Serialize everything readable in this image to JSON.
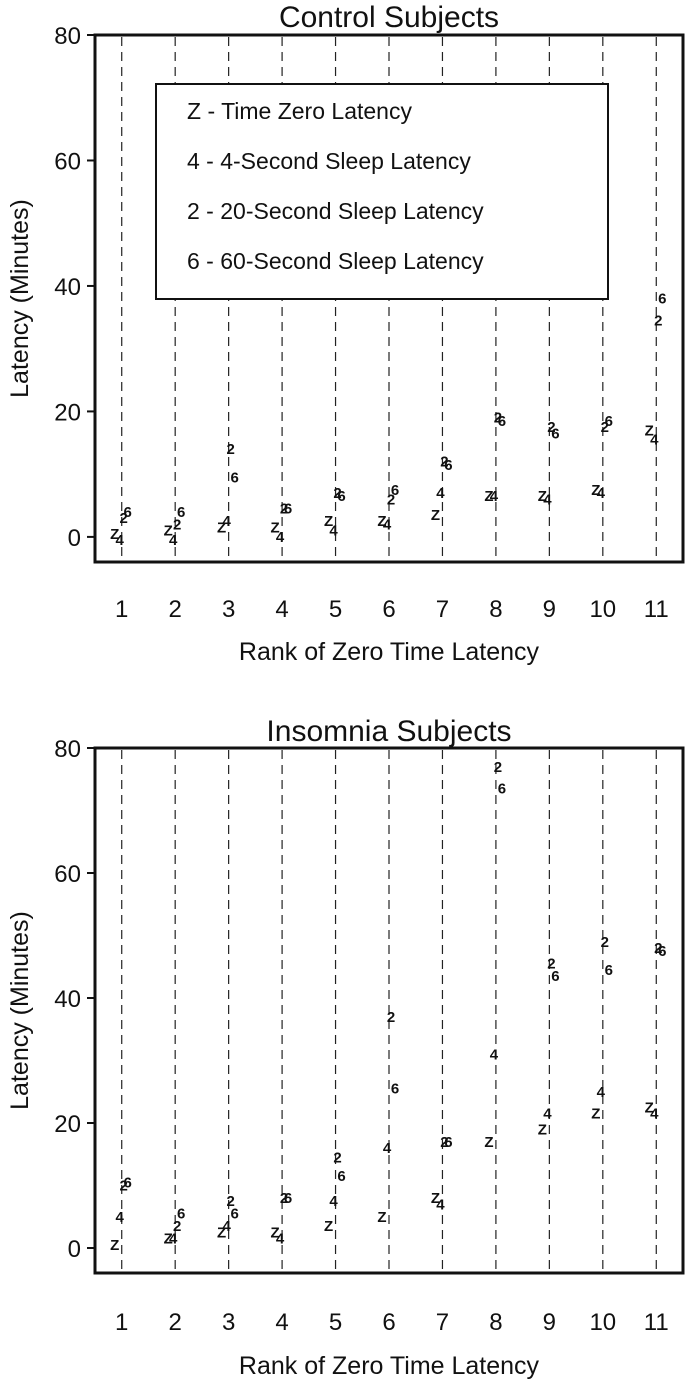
{
  "legend": [
    "Z - Time Zero Latency",
    "4 - 4-Second Sleep Latency",
    "2 - 20-Second Sleep Latency",
    "6 - 60-Second Sleep Latency"
  ],
  "chart_data": [
    {
      "type": "scatter",
      "title": "Control Subjects",
      "xlabel": "Rank of Zero Time Latency",
      "ylabel": "Latency (Minutes)",
      "xlim": [
        0.5,
        11.5
      ],
      "ylim": [
        -4,
        80
      ],
      "yticks": [
        0,
        20,
        40,
        60,
        80
      ],
      "x": [
        1,
        2,
        3,
        4,
        5,
        6,
        7,
        8,
        9,
        10,
        11
      ],
      "legend_placement": "top-center",
      "grid": "dashed vertical lines at each rank",
      "series": [
        {
          "marker": "Z",
          "values": [
            0.5,
            1,
            1.5,
            1.5,
            2.5,
            2.5,
            3.5,
            6.5,
            6.5,
            7.5,
            17
          ]
        },
        {
          "marker": "4",
          "values": [
            -0.5,
            -0.5,
            2.5,
            0,
            1,
            2,
            7,
            6.5,
            6,
            7,
            15.5
          ]
        },
        {
          "marker": "2",
          "values": [
            3,
            2,
            14,
            4.5,
            7,
            6,
            12,
            19,
            17.5,
            17.5,
            34.5
          ]
        },
        {
          "marker": "6",
          "values": [
            4,
            4,
            9.5,
            4.5,
            6.5,
            7.5,
            11.5,
            18.5,
            16.5,
            18.5,
            38
          ]
        }
      ]
    },
    {
      "type": "scatter",
      "title": "Insomnia Subjects",
      "xlabel": "Rank of Zero Time Latency",
      "ylabel": "Latency (Minutes)",
      "xlim": [
        0.5,
        11.5
      ],
      "ylim": [
        -4,
        80
      ],
      "yticks": [
        0,
        20,
        40,
        60,
        80
      ],
      "x": [
        1,
        2,
        3,
        4,
        5,
        6,
        7,
        8,
        9,
        10,
        11
      ],
      "grid": "dashed vertical lines at each rank",
      "series": [
        {
          "marker": "Z",
          "values": [
            0.5,
            1.5,
            2.5,
            2.5,
            3.5,
            5,
            8,
            17,
            19,
            21.5,
            22.5
          ]
        },
        {
          "marker": "4",
          "values": [
            5,
            1.5,
            3.5,
            1.5,
            7.5,
            16,
            7,
            31,
            21.5,
            25,
            21.5
          ]
        },
        {
          "marker": "2",
          "values": [
            10,
            3.5,
            7.5,
            8,
            14.5,
            37,
            17,
            77,
            45.5,
            49,
            48
          ]
        },
        {
          "marker": "6",
          "values": [
            10.5,
            5.5,
            5.5,
            8,
            11.5,
            25.5,
            17,
            73.5,
            43.5,
            44.5,
            47.5
          ]
        }
      ]
    }
  ]
}
